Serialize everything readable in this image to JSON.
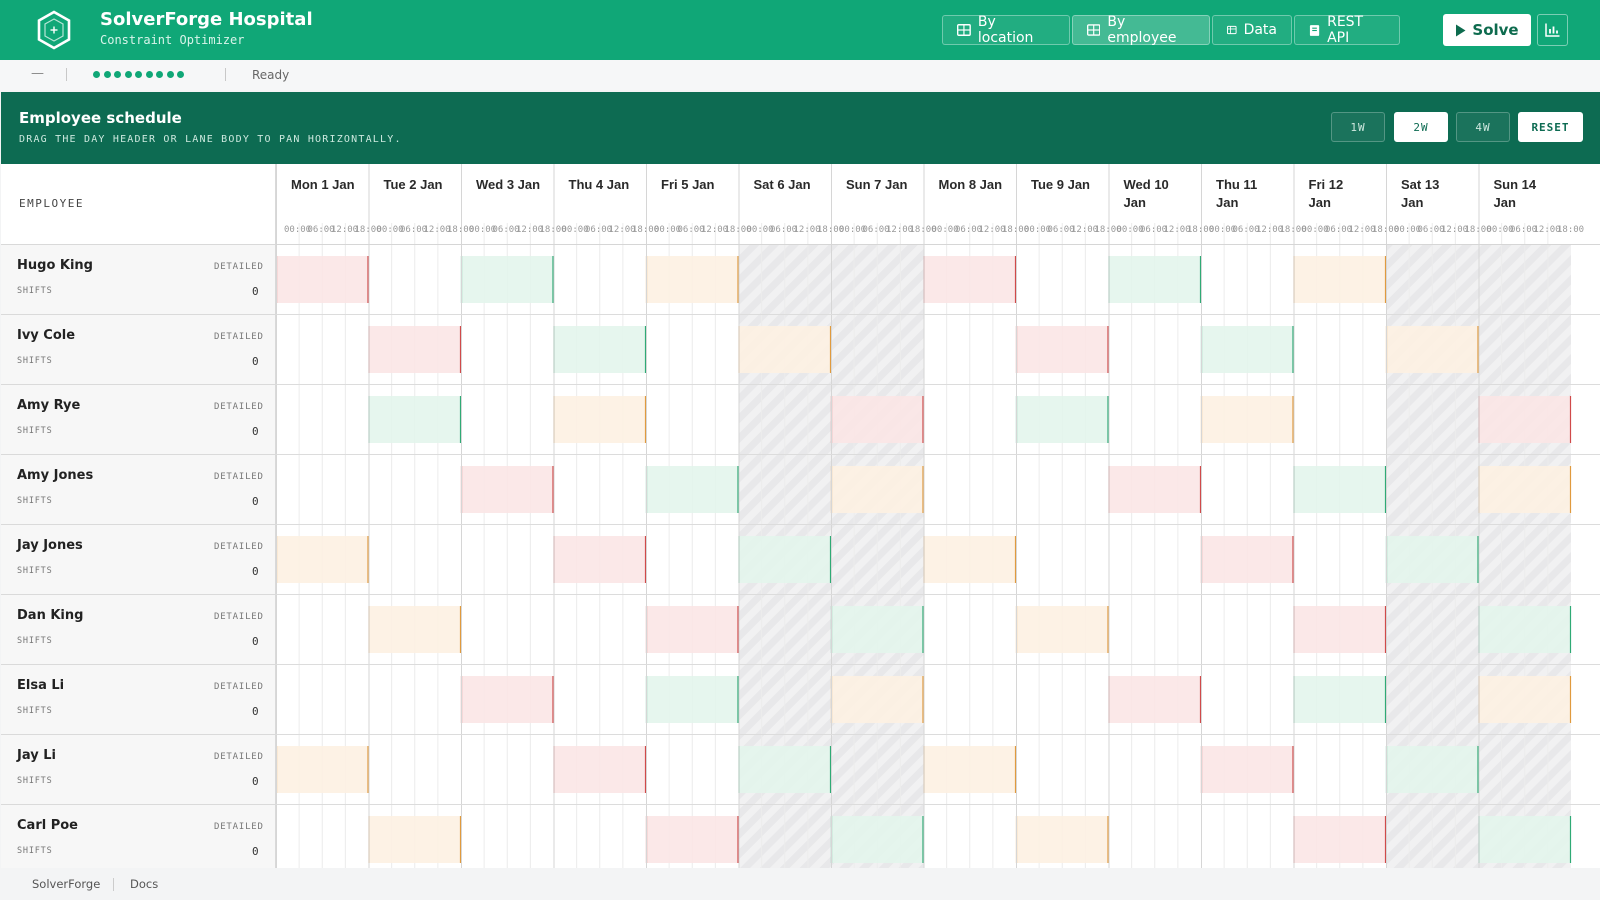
{
  "header": {
    "title": "SolverForge Hospital",
    "subtitle": "Constraint Optimizer",
    "nav": [
      {
        "label": "By location",
        "icon": "grid-icon",
        "active": false
      },
      {
        "label": "By employee",
        "icon": "grid-icon",
        "active": true
      },
      {
        "label": "Data",
        "icon": "table-icon",
        "active": false
      },
      {
        "label": "REST API",
        "icon": "book-icon",
        "active": false
      }
    ],
    "solve_label": "Solve",
    "chart_button_icon": "bar-chart-icon"
  },
  "status": {
    "dash": "—",
    "dot_count": 9,
    "text": "Ready"
  },
  "panel": {
    "title": "Employee schedule",
    "subtitle": "DRAG THE DAY HEADER OR LANE BODY TO PAN HORIZONTALLY.",
    "zoom": [
      {
        "label": "1W",
        "active": false
      },
      {
        "label": "2W",
        "active": true
      },
      {
        "label": "4W",
        "active": false
      }
    ],
    "reset_label": "RESET",
    "column_header": "EMPLOYEE",
    "days": [
      {
        "label": "Mon 1 Jan",
        "weekend": false
      },
      {
        "label": "Tue 2 Jan",
        "weekend": false
      },
      {
        "label": "Wed 3 Jan",
        "weekend": false
      },
      {
        "label": "Thu 4 Jan",
        "weekend": false
      },
      {
        "label": "Fri 5 Jan",
        "weekend": false
      },
      {
        "label": "Sat 6 Jan",
        "weekend": true
      },
      {
        "label": "Sun 7 Jan",
        "weekend": true
      },
      {
        "label": "Mon 8 Jan",
        "weekend": false
      },
      {
        "label": "Tue 9 Jan",
        "weekend": false
      },
      {
        "label": "Wed 10 Jan",
        "weekend": false
      },
      {
        "label": "Thu 11 Jan",
        "weekend": false
      },
      {
        "label": "Fri 12 Jan",
        "weekend": false
      },
      {
        "label": "Sat 13 Jan",
        "weekend": true
      },
      {
        "label": "Sun 14 Jan",
        "weekend": true
      }
    ],
    "hours": [
      "00:00",
      "06:00",
      "12:00",
      "18:00"
    ],
    "detail_label": "DETAILED",
    "shifts_label": "SHIFTS",
    "employees": [
      {
        "name": "Hugo King",
        "shifts": "0",
        "blocks": [
          [
            0,
            "red"
          ],
          [
            2,
            "green"
          ],
          [
            4,
            "orange"
          ],
          [
            7,
            "red"
          ],
          [
            9,
            "green"
          ],
          [
            11,
            "orange"
          ]
        ]
      },
      {
        "name": "Ivy Cole",
        "shifts": "0",
        "blocks": [
          [
            1,
            "red"
          ],
          [
            3,
            "green"
          ],
          [
            5,
            "orange"
          ],
          [
            8,
            "red"
          ],
          [
            10,
            "green"
          ],
          [
            12,
            "orange"
          ]
        ]
      },
      {
        "name": "Amy Rye",
        "shifts": "0",
        "blocks": [
          [
            1,
            "green"
          ],
          [
            3,
            "orange"
          ],
          [
            6,
            "red"
          ],
          [
            8,
            "green"
          ],
          [
            10,
            "orange"
          ],
          [
            13,
            "red"
          ]
        ]
      },
      {
        "name": "Amy Jones",
        "shifts": "0",
        "blocks": [
          [
            2,
            "red"
          ],
          [
            4,
            "green"
          ],
          [
            6,
            "orange"
          ],
          [
            9,
            "red"
          ],
          [
            11,
            "green"
          ],
          [
            13,
            "orange"
          ]
        ]
      },
      {
        "name": "Jay Jones",
        "shifts": "0",
        "blocks": [
          [
            0,
            "orange"
          ],
          [
            3,
            "red"
          ],
          [
            5,
            "green"
          ],
          [
            7,
            "orange"
          ],
          [
            10,
            "red"
          ],
          [
            12,
            "green"
          ]
        ]
      },
      {
        "name": "Dan King",
        "shifts": "0",
        "blocks": [
          [
            1,
            "orange"
          ],
          [
            4,
            "red"
          ],
          [
            6,
            "green"
          ],
          [
            8,
            "orange"
          ],
          [
            11,
            "red"
          ],
          [
            13,
            "green"
          ]
        ]
      },
      {
        "name": "Elsa Li",
        "shifts": "0",
        "blocks": [
          [
            2,
            "red"
          ],
          [
            4,
            "green"
          ],
          [
            6,
            "orange"
          ],
          [
            9,
            "red"
          ],
          [
            11,
            "green"
          ],
          [
            13,
            "orange"
          ]
        ]
      },
      {
        "name": "Jay Li",
        "shifts": "0",
        "blocks": [
          [
            0,
            "orange"
          ],
          [
            3,
            "red"
          ],
          [
            5,
            "green"
          ],
          [
            7,
            "orange"
          ],
          [
            10,
            "red"
          ],
          [
            12,
            "green"
          ]
        ]
      },
      {
        "name": "Carl Poe",
        "shifts": "0",
        "blocks": [
          [
            1,
            "orange"
          ],
          [
            4,
            "red"
          ],
          [
            6,
            "green"
          ],
          [
            8,
            "orange"
          ],
          [
            11,
            "red"
          ],
          [
            13,
            "green"
          ]
        ]
      }
    ]
  },
  "colors": {
    "brand": "#10a777",
    "panel": "#0d6b52",
    "red_fill": "#fbe5e5",
    "red_edge": "#d04a4a",
    "green_fill": "#e3f5ec",
    "green_edge": "#2faa75",
    "orange_fill": "#fdf1e2",
    "orange_edge": "#e09a3e"
  },
  "footer": {
    "links": [
      "SolverForge",
      "Docs"
    ]
  }
}
